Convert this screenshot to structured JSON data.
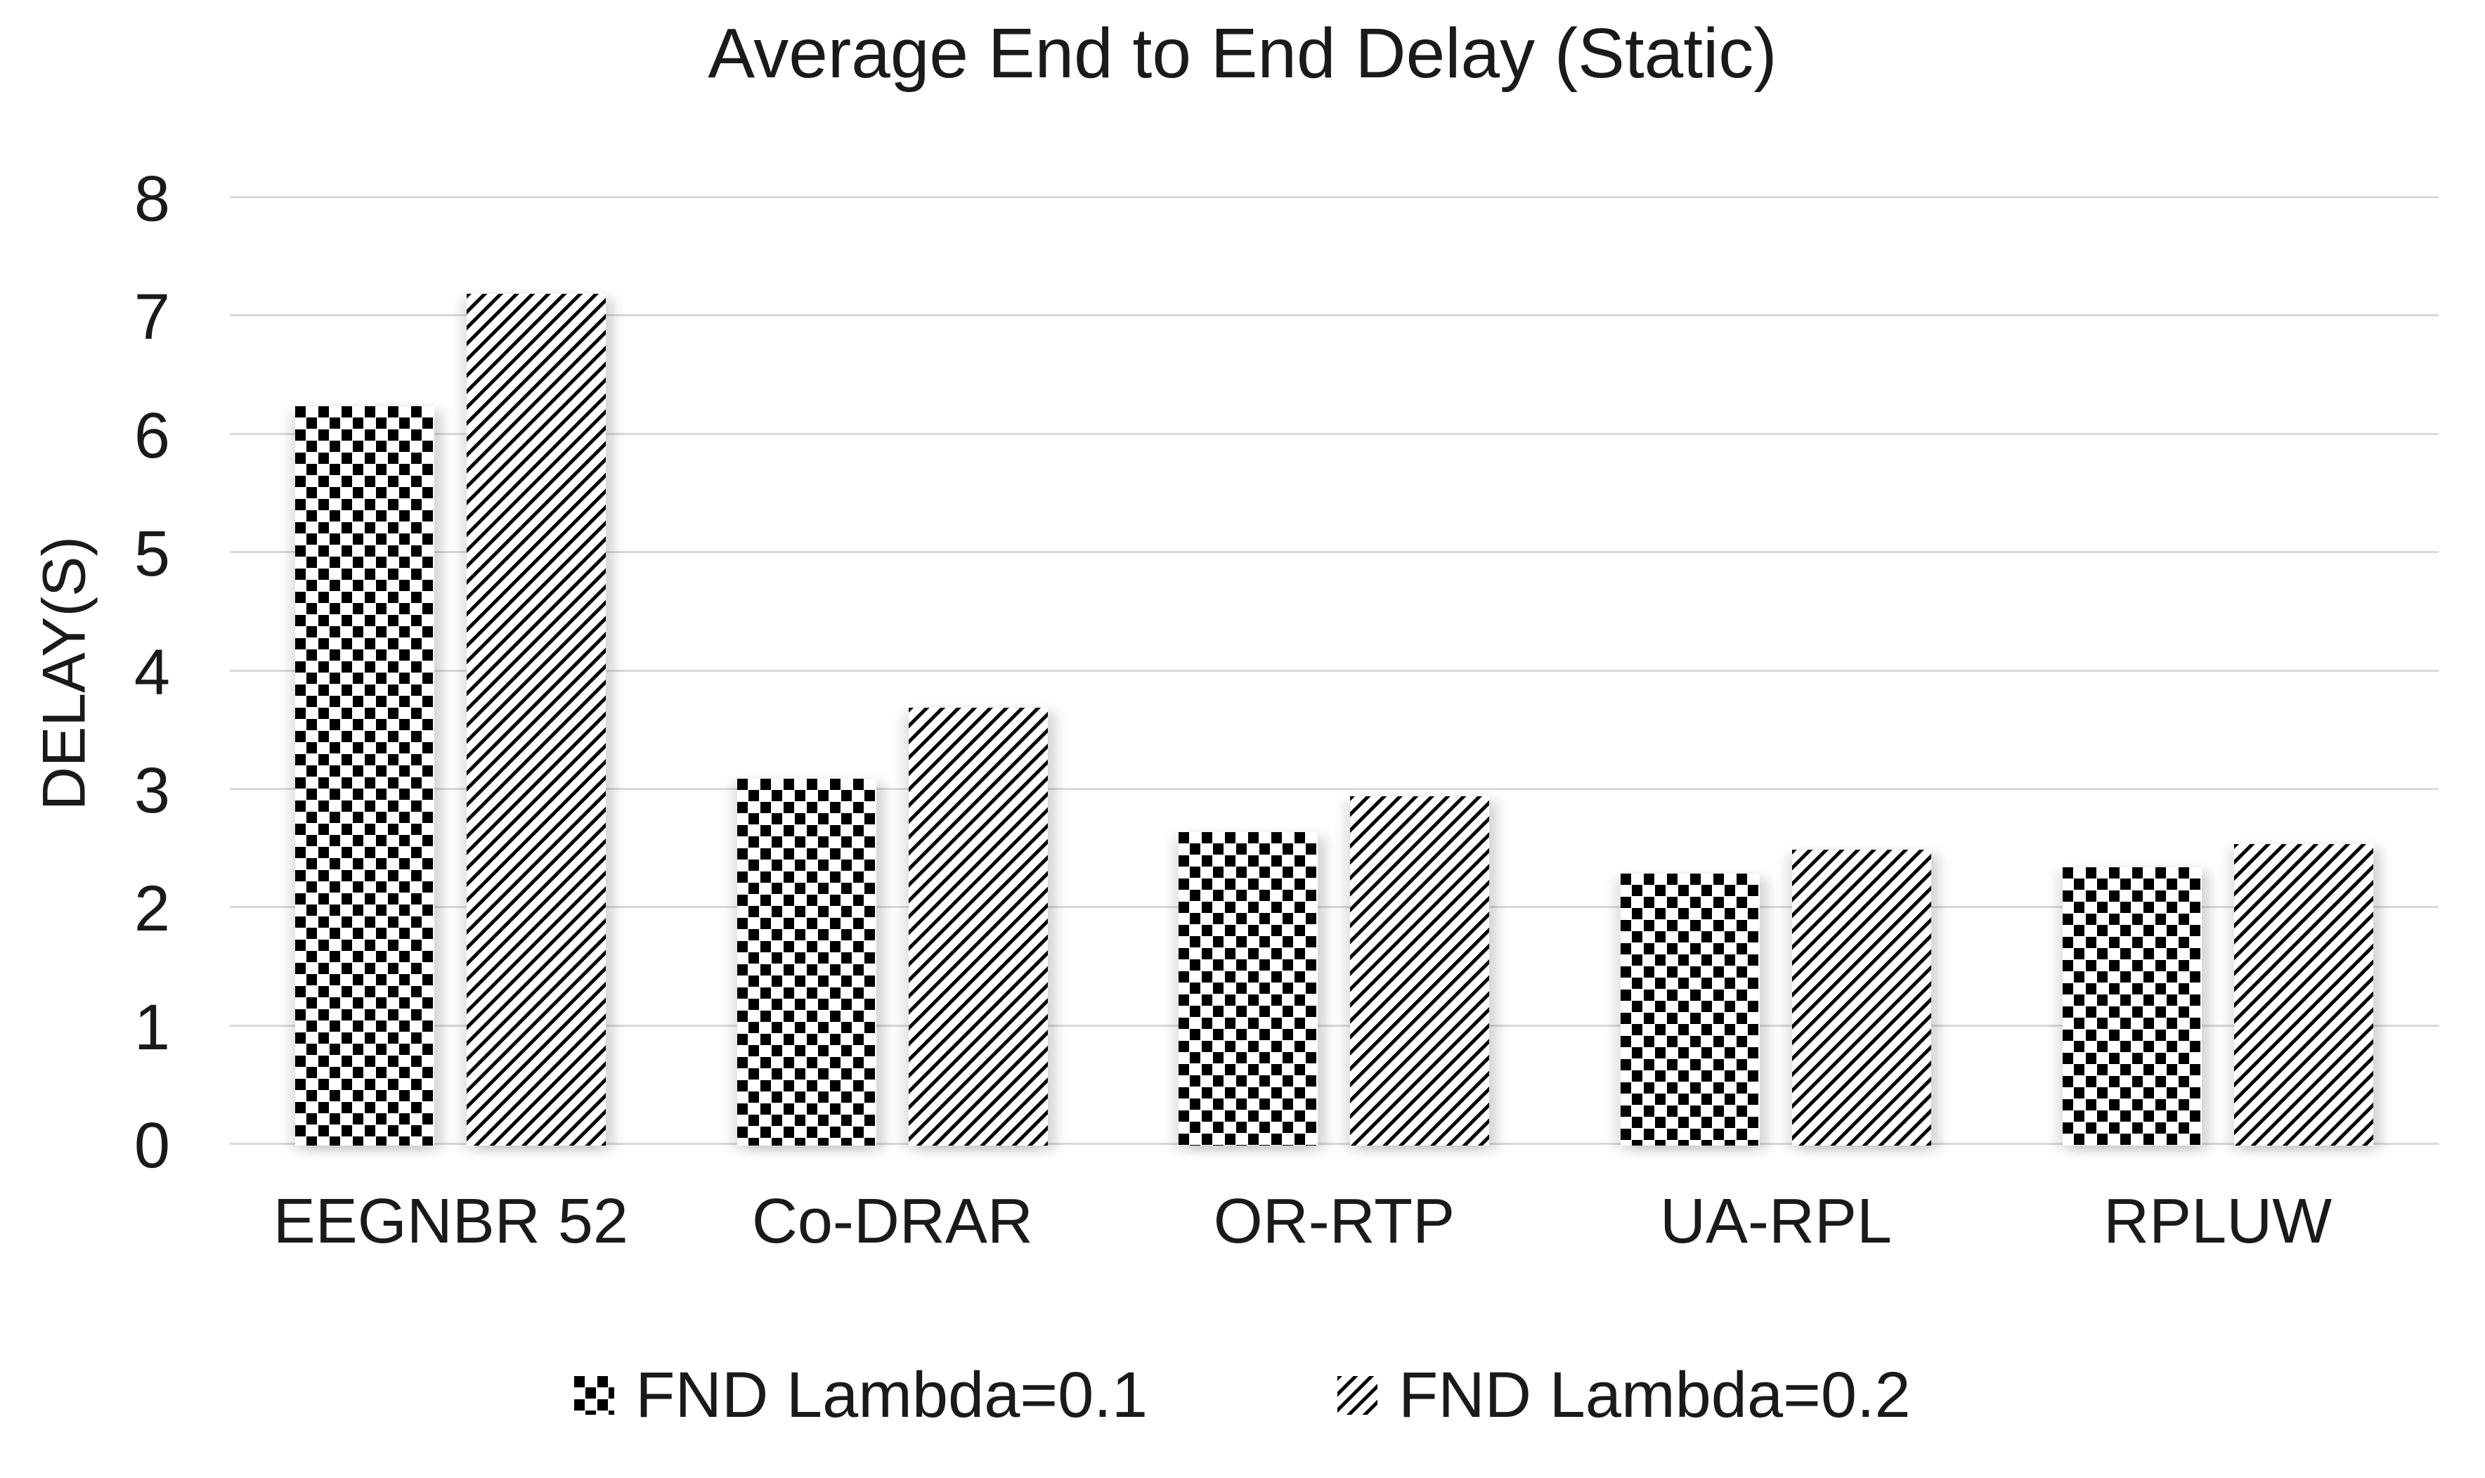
{
  "chart_data": {
    "type": "bar",
    "title": "Average End to End Delay (Static)",
    "xlabel": "",
    "ylabel": "DELAY(S)",
    "categories": [
      "EEGNBR 52",
      "Co-DRAR",
      "OR-RTP",
      "UA-RPL",
      "RPLUW"
    ],
    "series": [
      {
        "name": "FND Lambda=0.1",
        "pattern": "checker",
        "values": [
          6.25,
          3.1,
          2.65,
          2.3,
          2.35
        ]
      },
      {
        "name": "FND Lambda=0.2",
        "pattern": "diagonal-stripes",
        "values": [
          7.2,
          3.7,
          2.95,
          2.5,
          2.55
        ]
      }
    ],
    "ylim": [
      0,
      8
    ],
    "yticks": [
      0,
      1,
      2,
      3,
      4,
      5,
      6,
      7,
      8
    ],
    "grid": "horizontal-light-gray",
    "legend_position": "bottom"
  },
  "colors": {
    "background": "#ffffff",
    "bar_pattern": "#000000",
    "gridline": "#d9d9d9",
    "text": "#1a1a1a"
  }
}
